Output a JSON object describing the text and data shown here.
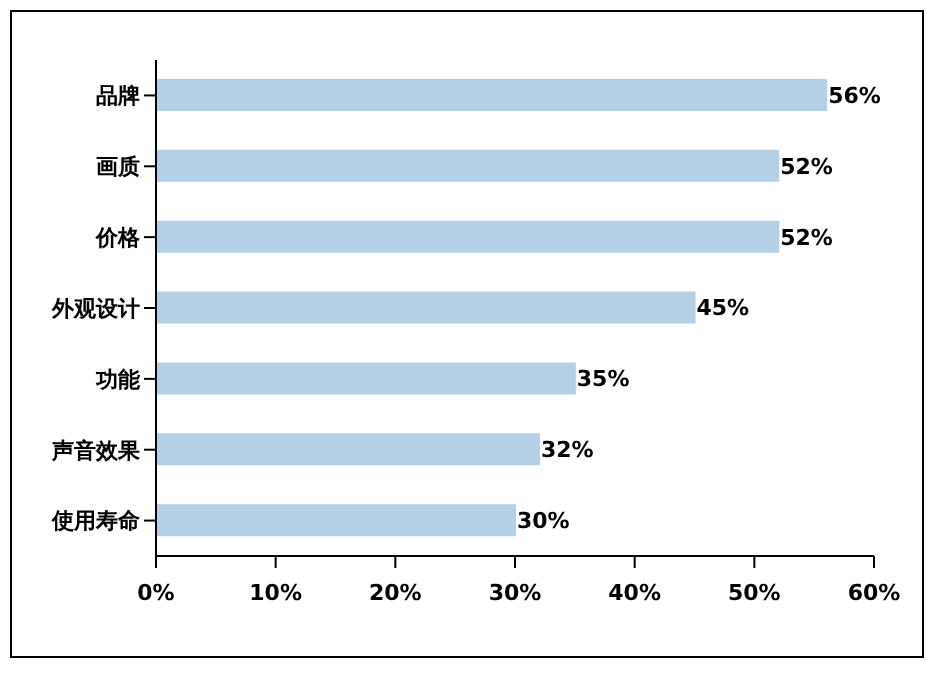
{
  "chart_data": {
    "type": "bar",
    "orientation": "horizontal",
    "categories": [
      "品牌",
      "画质",
      "价格",
      "外观设计",
      "功能",
      "声音效果",
      "使用寿命"
    ],
    "values": [
      56,
      52,
      52,
      45,
      35,
      32,
      30
    ],
    "value_labels": [
      "56%",
      "52%",
      "52%",
      "45%",
      "35%",
      "32%",
      "30%"
    ],
    "color": "#b4cfe6",
    "xlim": [
      0,
      60
    ],
    "xticks": [
      {
        "value": 0,
        "label": "0%"
      },
      {
        "value": 10,
        "label": "10%"
      },
      {
        "value": 20,
        "label": "20%"
      },
      {
        "value": 30,
        "label": "30%"
      },
      {
        "value": 40,
        "label": "40%"
      },
      {
        "value": 50,
        "label": "50%"
      },
      {
        "value": 60,
        "label": "60%"
      }
    ],
    "grid": false,
    "legend": false
  }
}
